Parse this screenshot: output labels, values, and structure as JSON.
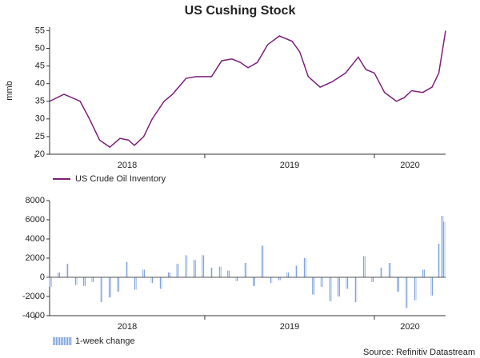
{
  "title": "US Cushing Stock",
  "source": "Source: Refinitiv Datastream",
  "chart_data": [
    {
      "type": "line",
      "ylabel": "mmb",
      "x": [
        2018.085,
        2018.17,
        2018.265,
        2018.32,
        2018.38,
        2018.44,
        2018.5,
        2018.55,
        2018.585,
        2018.64,
        2018.69,
        2018.76,
        2018.81,
        2018.89,
        2018.95,
        2019.04,
        2019.1,
        2019.16,
        2019.21,
        2019.255,
        2019.31,
        2019.37,
        2019.44,
        2019.515,
        2019.56,
        2019.61,
        2019.68,
        2019.75,
        2019.83,
        2019.905,
        2019.95,
        2020.0,
        2020.06,
        2020.13,
        2020.175,
        2020.22,
        2020.285,
        2020.34,
        2020.38,
        2020.4,
        2020.42
      ],
      "series": [
        {
          "name": "US Crude Oil Inventory",
          "color": "#7b1f7b",
          "values": [
            35,
            37,
            35,
            30,
            24,
            22,
            24.5,
            24,
            22.5,
            25,
            30,
            35,
            37,
            41.5,
            42,
            42,
            46.5,
            47,
            46,
            44.5,
            46,
            51,
            53.5,
            52,
            49,
            42,
            39,
            40.5,
            43,
            47.5,
            44,
            43,
            37.5,
            35,
            36,
            38,
            37.5,
            39,
            43,
            49,
            55
          ]
        }
      ],
      "xlim": [
        2018.085,
        2020.42
      ],
      "xticks": [
        2018,
        2019,
        2020
      ],
      "ylim": [
        20,
        56
      ],
      "yticks": [
        20,
        25,
        30,
        35,
        40,
        45,
        50,
        55
      ]
    },
    {
      "type": "bar",
      "x": [
        2018.09,
        2018.14,
        2018.19,
        2018.24,
        2018.29,
        2018.34,
        2018.39,
        2018.44,
        2018.49,
        2018.54,
        2018.59,
        2018.64,
        2018.69,
        2018.74,
        2018.79,
        2018.84,
        2018.89,
        2018.94,
        2018.99,
        2019.04,
        2019.09,
        2019.14,
        2019.19,
        2019.24,
        2019.29,
        2019.34,
        2019.39,
        2019.44,
        2019.49,
        2019.54,
        2019.59,
        2019.64,
        2019.69,
        2019.74,
        2019.79,
        2019.84,
        2019.89,
        2019.94,
        2019.99,
        2020.04,
        2020.09,
        2020.14,
        2020.19,
        2020.24,
        2020.29,
        2020.34,
        2020.38,
        2020.4,
        2020.41
      ],
      "series": [
        {
          "name": "1-week change",
          "color": "#8fb0e0",
          "values": [
            -1000,
            500,
            1400,
            -800,
            -900,
            -500,
            -2600,
            -2100,
            -1500,
            1600,
            -1300,
            800,
            -600,
            -1200,
            500,
            1400,
            2300,
            1800,
            2300,
            1000,
            1100,
            700,
            -400,
            1500,
            -900,
            3300,
            -600,
            -300,
            500,
            1200,
            2000,
            -1800,
            -1000,
            -2500,
            -2000,
            -1200,
            -2600,
            2200,
            -500,
            1000,
            1500,
            -1500,
            -3200,
            -2400,
            800,
            -1900,
            3500,
            6400,
            5800
          ]
        }
      ],
      "xlim": [
        2018.085,
        2020.42
      ],
      "xticks": [
        2018,
        2019,
        2020
      ],
      "ylim": [
        -4000,
        8000
      ],
      "yticks": [
        -4000,
        -2000,
        0,
        2000,
        4000,
        6000,
        8000
      ]
    }
  ]
}
